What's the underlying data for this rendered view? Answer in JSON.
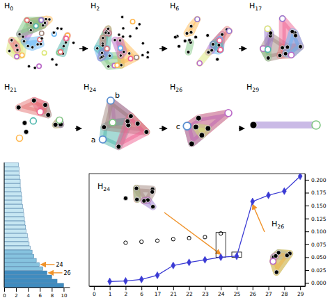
{
  "figure": {
    "panels": [
      {
        "title": "H0"
      },
      {
        "title": "H2"
      },
      {
        "title": "H6"
      },
      {
        "title": "H17"
      },
      {
        "title": "H21"
      },
      {
        "title": "H24",
        "node_labels": [
          "a",
          "b"
        ]
      },
      {
        "title": "H26",
        "node_labels": [
          "c"
        ]
      },
      {
        "title": "H29"
      }
    ]
  },
  "chart_data": [
    {
      "type": "bar",
      "orientation": "horizontal",
      "categories": [
        null,
        null,
        null,
        null,
        null,
        null,
        null,
        null,
        null,
        null,
        null,
        null,
        null,
        null,
        null,
        null,
        null,
        null,
        null,
        null,
        null,
        null,
        null,
        null,
        null,
        null,
        null,
        null,
        null,
        null
      ],
      "values": [
        2.4,
        2.5,
        2.5,
        2.6,
        2.7,
        2.7,
        2.8,
        2.9,
        3.0,
        3.0,
        3.1,
        3.2,
        3.3,
        3.4,
        3.5,
        3.6,
        3.7,
        3.9,
        4.0,
        4.2,
        4.4,
        4.7,
        5.0,
        5.4,
        5.9,
        6.5,
        7.2,
        8.0,
        8.9,
        10.0
      ],
      "colors": [
        "#c6e6f2",
        "#c6e6f2",
        "#c6e6f2",
        "#c6e6f2",
        "#c6e6f2",
        "#c6e6f2",
        "#c6e6f2",
        "#c6e6f2",
        "#c6e6f2",
        "#c6e6f2",
        "#c6e6f2",
        "#c6e6f2",
        "#c6e6f2",
        "#c6e6f2",
        "#c6e6f2",
        "#c6e6f2",
        "#c6e6f2",
        "#c6e6f2",
        "#c6e6f2",
        "#c6e6f2",
        "#c6e6f2",
        "#86c3df",
        "#86c3df",
        "#86c3df",
        "#86c3df",
        "#86c3df",
        "#3f8cc0",
        "#3f8cc0",
        "#3f8cc0",
        "#3f8cc0"
      ],
      "xlim": [
        0,
        11
      ],
      "xticks": [
        0,
        2,
        4,
        6,
        8,
        10
      ],
      "tick_labels": "x",
      "annotations": [
        {
          "text": "24",
          "category_index": 24
        },
        {
          "text": "26",
          "category_index": 26
        }
      ]
    },
    {
      "type": "line",
      "categories": [
        "0",
        "1",
        "2",
        "6",
        "17",
        "21",
        "22",
        "23",
        "24",
        "25",
        "26",
        "27",
        "28",
        "29"
      ],
      "series": [
        {
          "type": "line",
          "color": "#3a3ad4",
          "marker": "diamond",
          "values": [
            null,
            0.003,
            0.004,
            0.007,
            0.015,
            0.034,
            0.04,
            0.045,
            0.05,
            0.052,
            0.158,
            0.17,
            0.178,
            0.207
          ]
        },
        {
          "type": "scatter",
          "color": "#000000",
          "marker": "circle",
          "values": [
            null,
            null,
            0.078,
            0.08,
            0.082,
            0.085,
            0.087,
            0.089,
            0.096,
            null,
            null,
            null,
            null,
            null
          ]
        }
      ],
      "intervals": [
        {
          "x": "24",
          "low": 0.05,
          "high": 0.098
        },
        {
          "x": "25",
          "low": 0.05,
          "high": 0.06
        }
      ],
      "ylim": [
        -0.006,
        0.212
      ],
      "yticks": [
        {
          "value": 0,
          "label": "0.000"
        },
        {
          "value": 0.025,
          "label": "0.025"
        },
        {
          "value": 0.05,
          "label": "0.050"
        },
        {
          "value": 0.075,
          "label": "0.075"
        },
        {
          "value": 0.1,
          "label": "0.100"
        },
        {
          "value": 0.125,
          "label": "0.125"
        },
        {
          "value": 0.15,
          "label": "0.150"
        },
        {
          "value": 0.175,
          "label": "0.175"
        },
        {
          "value": 0.2,
          "label": "0.200"
        }
      ],
      "annotations": [
        {
          "text": "H24",
          "x": "24"
        },
        {
          "text": "H26",
          "x": "26"
        }
      ]
    }
  ]
}
